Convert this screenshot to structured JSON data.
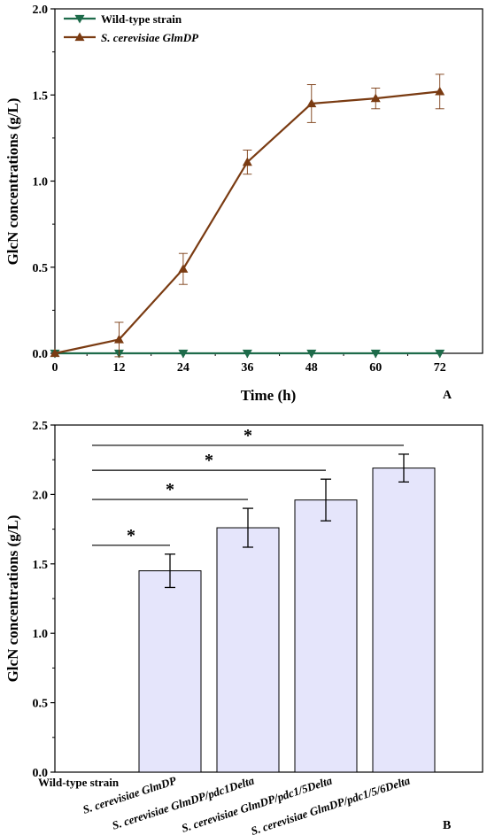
{
  "chart_data": [
    {
      "panel": "A",
      "type": "line",
      "xlabel": "Time (h)",
      "ylabel": "GlcN concentrations (g/L)",
      "xlim": [
        0,
        80
      ],
      "ylim": [
        0,
        2.0
      ],
      "x_ticks": [
        "0",
        "12",
        "24",
        "36",
        "48",
        "60",
        "72"
      ],
      "y_ticks": [
        "0.0",
        "0.5",
        "1.0",
        "1.5",
        "2.0"
      ],
      "legend_position": "top-left",
      "x": [
        0,
        12,
        24,
        36,
        48,
        60,
        72
      ],
      "series": [
        {
          "name": "Wild-type strain",
          "values": [
            0,
            0,
            0,
            0,
            0,
            0,
            0
          ],
          "errors": [
            0,
            0,
            0,
            0,
            0,
            0,
            0
          ],
          "color": "#1e6b4a",
          "marker": "triangle-down"
        },
        {
          "name": "S. cerevisiae GlmDP",
          "values": [
            0,
            0.08,
            0.49,
            1.11,
            1.45,
            1.48,
            1.52
          ],
          "errors": [
            0,
            0.1,
            0.09,
            0.07,
            0.11,
            0.06,
            0.1
          ],
          "color": "#7a3b12",
          "marker": "triangle-up"
        }
      ]
    },
    {
      "panel": "B",
      "type": "bar",
      "ylabel": "GlcN concentrations (g/L)",
      "ylim": [
        0,
        2.5
      ],
      "y_ticks": [
        "0.0",
        "0.5",
        "1.0",
        "1.5",
        "2.0",
        "2.5"
      ],
      "categories": [
        "Wild-type strain",
        "S. cerevisiae GlmDP",
        "S. cerevisiae GlmDP/pdc1Delta",
        "S. cerevisiae GlmDP/pdc1/5Delta",
        "S. cerevisiae GlmDP/pdc1/5/6Delta"
      ],
      "values": [
        0,
        1.45,
        1.76,
        1.96,
        2.19
      ],
      "errors": [
        0,
        0.12,
        0.14,
        0.15,
        0.1
      ],
      "bar_color": "#e5e5fb",
      "significance": [
        {
          "from": 0,
          "to": 1,
          "label": "*"
        },
        {
          "from": 0,
          "to": 2,
          "label": "*"
        },
        {
          "from": 0,
          "to": 3,
          "label": "*"
        },
        {
          "from": 0,
          "to": 4,
          "label": "*"
        }
      ]
    }
  ]
}
